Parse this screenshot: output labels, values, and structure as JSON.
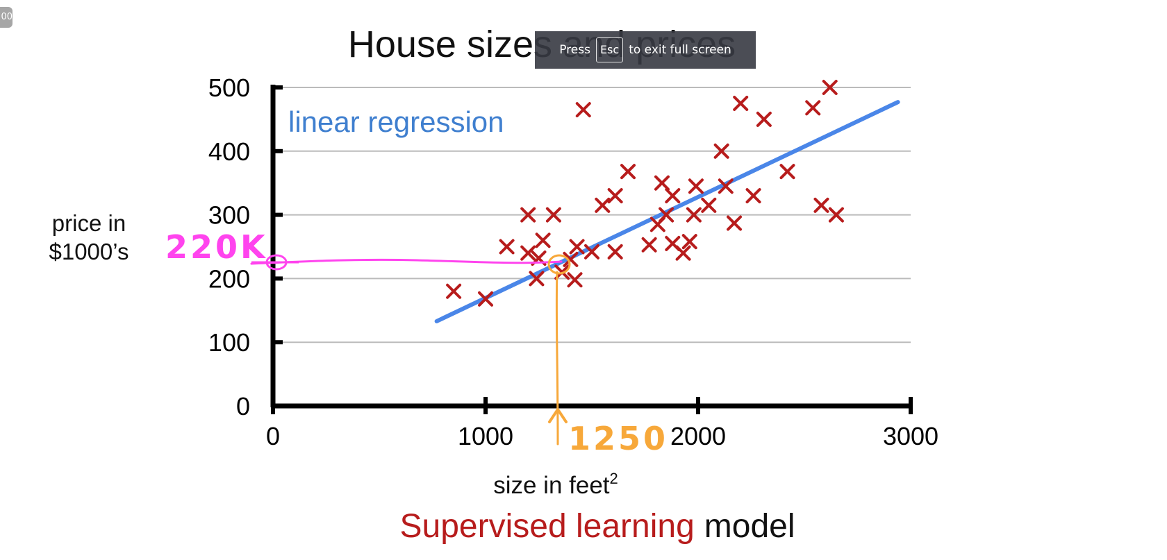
{
  "corner_badge": "00",
  "fullscreen_notice": {
    "press": "Press",
    "key": "Esc",
    "rest": "to exit full screen"
  },
  "colors": {
    "points": "#b71c1c",
    "regression_line": "#4a86e8",
    "annotation_pink": "#ff44ee",
    "annotation_orange": "#f7a83a",
    "caption_highlight": "#b71c1c",
    "grid": "#bbbbbb"
  },
  "chart_data": {
    "type": "scatter",
    "title": "House sizes and prices",
    "xlabel": "size in feet",
    "xlabel_superscript": "2",
    "ylabel": [
      "price in",
      "$1000’s"
    ],
    "xlim": [
      0,
      3000
    ],
    "ylim": [
      0,
      500
    ],
    "xticks": [
      "0",
      "1000",
      "2000",
      "3000"
    ],
    "yticks": [
      "0",
      "100",
      "200",
      "300",
      "400",
      "500"
    ],
    "grid": true,
    "model_label": "linear regression",
    "line": {
      "x": [
        770,
        2940
      ],
      "y": [
        133,
        477
      ]
    },
    "points": [
      {
        "x": 850,
        "y": 180
      },
      {
        "x": 1000,
        "y": 168
      },
      {
        "x": 1100,
        "y": 250
      },
      {
        "x": 1200,
        "y": 300
      },
      {
        "x": 1200,
        "y": 240
      },
      {
        "x": 1240,
        "y": 200
      },
      {
        "x": 1250,
        "y": 232
      },
      {
        "x": 1270,
        "y": 260
      },
      {
        "x": 1320,
        "y": 300
      },
      {
        "x": 1360,
        "y": 210
      },
      {
        "x": 1400,
        "y": 230
      },
      {
        "x": 1420,
        "y": 198
      },
      {
        "x": 1430,
        "y": 250
      },
      {
        "x": 1460,
        "y": 465
      },
      {
        "x": 1500,
        "y": 242
      },
      {
        "x": 1550,
        "y": 315
      },
      {
        "x": 1610,
        "y": 330
      },
      {
        "x": 1610,
        "y": 242
      },
      {
        "x": 1670,
        "y": 368
      },
      {
        "x": 1770,
        "y": 253
      },
      {
        "x": 1810,
        "y": 285
      },
      {
        "x": 1830,
        "y": 350
      },
      {
        "x": 1850,
        "y": 300
      },
      {
        "x": 1880,
        "y": 330
      },
      {
        "x": 1880,
        "y": 255
      },
      {
        "x": 1930,
        "y": 240
      },
      {
        "x": 1960,
        "y": 258
      },
      {
        "x": 1980,
        "y": 300
      },
      {
        "x": 1990,
        "y": 345
      },
      {
        "x": 2050,
        "y": 315
      },
      {
        "x": 2110,
        "y": 400
      },
      {
        "x": 2130,
        "y": 345
      },
      {
        "x": 2170,
        "y": 287
      },
      {
        "x": 2200,
        "y": 475
      },
      {
        "x": 2260,
        "y": 330
      },
      {
        "x": 2310,
        "y": 450
      },
      {
        "x": 2420,
        "y": 368
      },
      {
        "x": 2540,
        "y": 468
      },
      {
        "x": 2580,
        "y": 315
      },
      {
        "x": 2620,
        "y": 500
      },
      {
        "x": 2650,
        "y": 300
      }
    ],
    "annotations": {
      "y_value": "220K",
      "x_value": "1250"
    },
    "caption": {
      "highlight": "Supervised learning",
      "rest": "model"
    }
  }
}
